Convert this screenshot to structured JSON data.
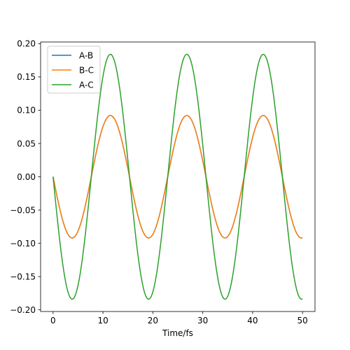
{
  "chart_data": {
    "type": "line",
    "xlabel": "Time/fs",
    "ylabel": "",
    "xlim": [
      -2.5,
      52.5
    ],
    "ylim": [
      -0.2025,
      0.2025
    ],
    "xticks": [
      0,
      10,
      20,
      30,
      40,
      50
    ],
    "xtick_labels": [
      "0",
      "10",
      "20",
      "30",
      "40",
      "50"
    ],
    "yticks": [
      -0.2,
      -0.15,
      -0.1,
      -0.05,
      0.0,
      0.05,
      0.1,
      0.15,
      0.2
    ],
    "ytick_labels": [
      "−0.20",
      "−0.15",
      "−0.10",
      "−0.05",
      "0.00",
      "0.05",
      "0.10",
      "0.15",
      "0.20"
    ],
    "grid": false,
    "legend_position": "top-left",
    "series": [
      {
        "name": "A-B",
        "color": "#1f77b4",
        "x": [
          0,
          1.92,
          3.83,
          5.75,
          7.66,
          9.58,
          11.49,
          13.41,
          15.32,
          17.24,
          19.15,
          21.07,
          22.98,
          24.9,
          26.81,
          28.73,
          30.64,
          32.56,
          34.47,
          36.39,
          38.3,
          40.22,
          42.13,
          44.05,
          45.96,
          47.88,
          49.79,
          50
        ],
        "y": [
          0,
          -0.065,
          -0.092,
          -0.065,
          0,
          0.065,
          0.092,
          0.065,
          0,
          -0.065,
          -0.092,
          -0.065,
          0,
          0.065,
          0.092,
          0.065,
          0,
          -0.065,
          -0.092,
          -0.065,
          0,
          0.065,
          0.092,
          0.065,
          0,
          -0.065,
          -0.092,
          -0.092
        ]
      },
      {
        "name": "B-C",
        "color": "#ff7f0e",
        "x": [
          0,
          1.92,
          3.83,
          5.75,
          7.66,
          9.58,
          11.49,
          13.41,
          15.32,
          17.24,
          19.15,
          21.07,
          22.98,
          24.9,
          26.81,
          28.73,
          30.64,
          32.56,
          34.47,
          36.39,
          38.3,
          40.22,
          42.13,
          44.05,
          45.96,
          47.88,
          49.79,
          50
        ],
        "y": [
          0,
          -0.065,
          -0.092,
          -0.065,
          0,
          0.065,
          0.092,
          0.065,
          0,
          -0.065,
          -0.092,
          -0.065,
          0,
          0.065,
          0.092,
          0.065,
          0,
          -0.065,
          -0.092,
          -0.065,
          0,
          0.065,
          0.092,
          0.065,
          0,
          -0.065,
          -0.092,
          -0.092
        ]
      },
      {
        "name": "A-C",
        "color": "#2ca02c",
        "x": [
          0,
          1.92,
          3.83,
          5.75,
          7.66,
          9.58,
          11.49,
          13.41,
          15.32,
          17.24,
          19.15,
          21.07,
          22.98,
          24.9,
          26.81,
          28.73,
          30.64,
          32.56,
          34.47,
          36.39,
          38.3,
          40.22,
          42.13,
          44.05,
          45.96,
          47.88,
          49.79,
          50
        ],
        "y": [
          0,
          -0.13,
          -0.184,
          -0.13,
          0,
          0.13,
          0.184,
          0.13,
          0,
          -0.13,
          -0.184,
          -0.13,
          0,
          0.13,
          0.184,
          0.13,
          0,
          -0.13,
          -0.184,
          -0.13,
          0,
          0.13,
          0.184,
          0.13,
          0,
          -0.13,
          -0.184,
          -0.184
        ]
      }
    ]
  }
}
